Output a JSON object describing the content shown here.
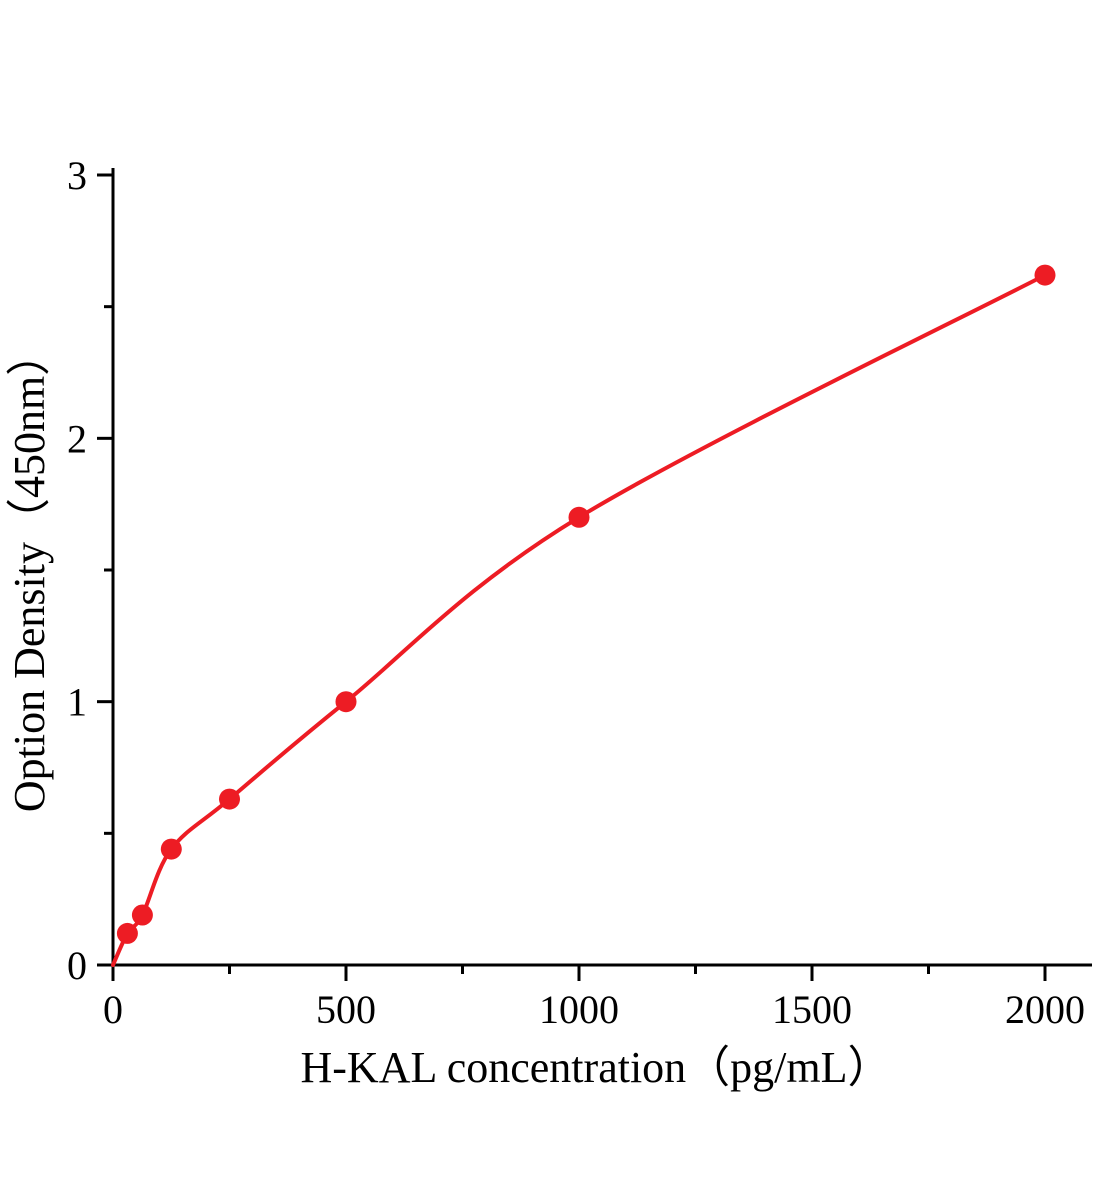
{
  "chart_data": {
    "type": "scatter",
    "title": "",
    "xlabel": "H-KAL concentration（pg/mL）",
    "ylabel": "Option Density（450nm）",
    "xlim": [
      0,
      2100
    ],
    "ylim": [
      0,
      3
    ],
    "x_major_ticks": [
      0,
      500,
      1000,
      1500,
      2000
    ],
    "x_minor_ticks": [
      250,
      750,
      1250,
      1750
    ],
    "y_major_ticks": [
      0,
      1,
      2,
      3
    ],
    "y_minor_ticks": [
      0.5,
      1.5,
      2.5
    ],
    "grid": "off",
    "legend": "none",
    "curve_start": {
      "x": 0,
      "y": 0
    },
    "points": [
      {
        "x": 31,
        "y": 0.12
      },
      {
        "x": 63,
        "y": 0.19
      },
      {
        "x": 125,
        "y": 0.44
      },
      {
        "x": 250,
        "y": 0.63
      },
      {
        "x": 500,
        "y": 1.0
      },
      {
        "x": 1000,
        "y": 1.7
      },
      {
        "x": 2000,
        "y": 2.62
      }
    ],
    "point_color": "#ed1c24",
    "curve_color": "#ed1c24",
    "axis_color": "#000000"
  }
}
